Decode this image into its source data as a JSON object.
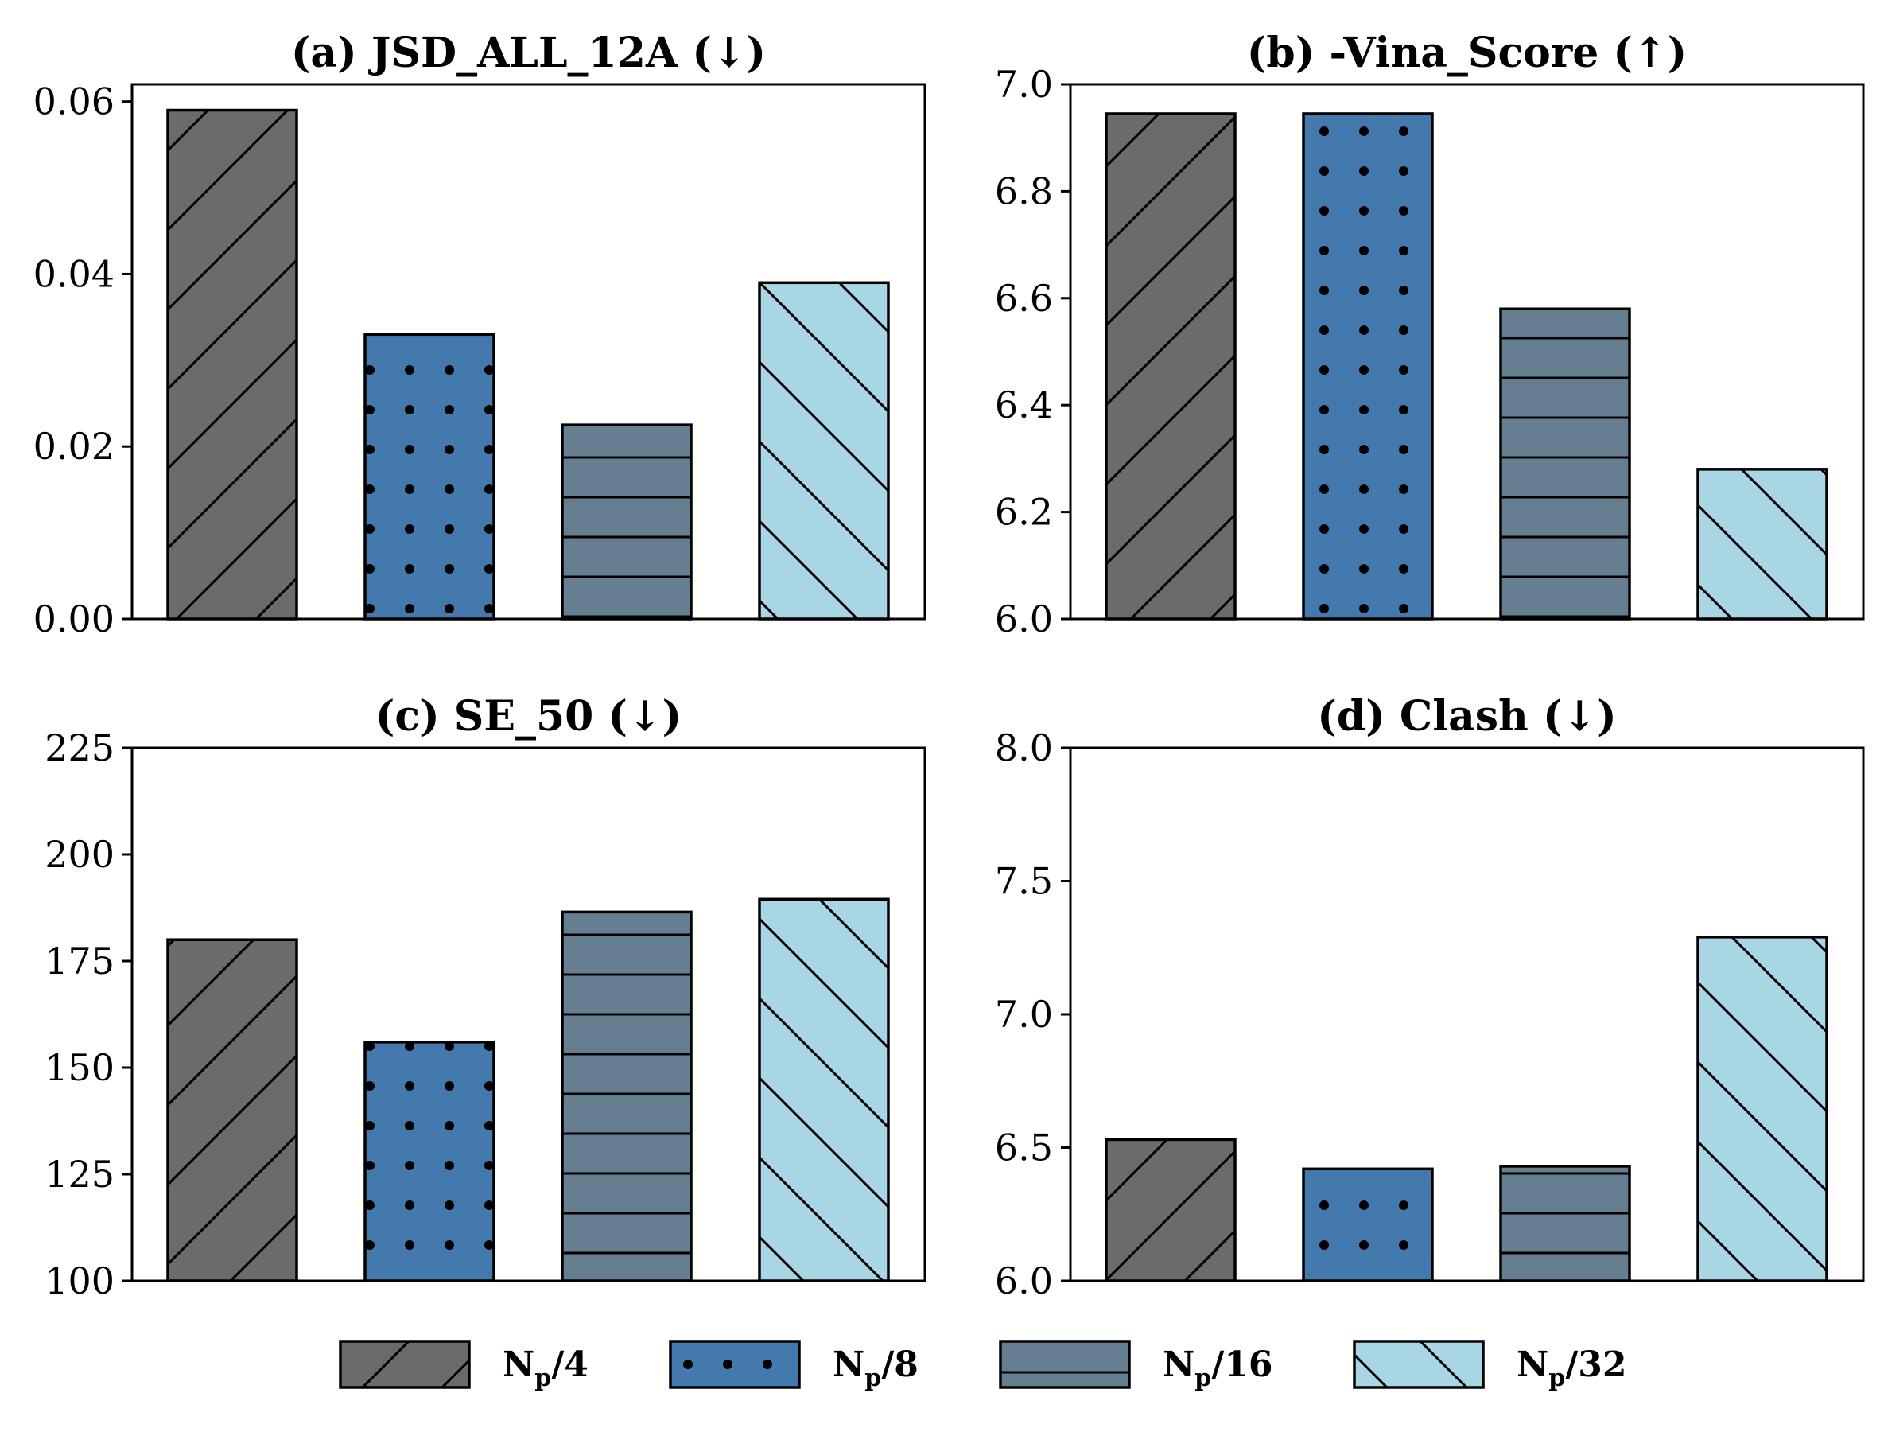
{
  "chart_data": [
    {
      "type": "bar",
      "title": "(a) JSD_ALL_12A (↓)",
      "categories": [
        "Np/4",
        "Np/8",
        "Np/16",
        "Np/32"
      ],
      "values": [
        0.059,
        0.033,
        0.0225,
        0.039
      ],
      "ylim": [
        0,
        0.062
      ],
      "yticks": [
        0.0,
        0.02,
        0.04,
        0.06
      ],
      "ytick_labels": [
        "0.00",
        "0.02",
        "0.04",
        "0.06"
      ],
      "xlabel": "",
      "ylabel": ""
    },
    {
      "type": "bar",
      "title": "(b) -Vina_Score (↑)",
      "categories": [
        "Np/4",
        "Np/8",
        "Np/16",
        "Np/32"
      ],
      "values": [
        6.945,
        6.945,
        6.58,
        6.28
      ],
      "ylim": [
        6.0,
        7.0
      ],
      "yticks": [
        6.0,
        6.2,
        6.4,
        6.6,
        6.8,
        7.0
      ],
      "ytick_labels": [
        "6.0",
        "6.2",
        "6.4",
        "6.6",
        "6.8",
        "7.0"
      ],
      "xlabel": "",
      "ylabel": ""
    },
    {
      "type": "bar",
      "title": "(c) SE_50 (↓)",
      "categories": [
        "Np/4",
        "Np/8",
        "Np/16",
        "Np/32"
      ],
      "values": [
        180,
        156,
        186.5,
        189.5
      ],
      "ylim": [
        100,
        225
      ],
      "yticks": [
        100,
        125,
        150,
        175,
        200,
        225
      ],
      "ytick_labels": [
        "100",
        "125",
        "150",
        "175",
        "200",
        "225"
      ],
      "xlabel": "",
      "ylabel": ""
    },
    {
      "type": "bar",
      "title": "(d) Clash (↓)",
      "categories": [
        "Np/4",
        "Np/8",
        "Np/16",
        "Np/32"
      ],
      "values": [
        6.53,
        6.42,
        6.43,
        7.29
      ],
      "ylim": [
        6.0,
        8.0
      ],
      "yticks": [
        6.0,
        6.5,
        7.0,
        7.5,
        8.0
      ],
      "ytick_labels": [
        "6.0",
        "6.5",
        "7.0",
        "7.5",
        "8.0"
      ],
      "xlabel": "",
      "ylabel": ""
    }
  ],
  "legend": {
    "position": "bottom-center",
    "items": [
      {
        "label_main": "N",
        "label_sub": "p",
        "label_rest": "/4",
        "color": "#6b6b6b",
        "pattern": "forward-diagonal"
      },
      {
        "label_main": "N",
        "label_sub": "p",
        "label_rest": "/8",
        "color": "#4479ae",
        "pattern": "dots"
      },
      {
        "label_main": "N",
        "label_sub": "p",
        "label_rest": "/16",
        "color": "#667f90",
        "pattern": "horizontal"
      },
      {
        "label_main": "N",
        "label_sub": "p",
        "label_rest": "/32",
        "color": "#a9d6e5",
        "pattern": "back-diagonal"
      }
    ]
  }
}
